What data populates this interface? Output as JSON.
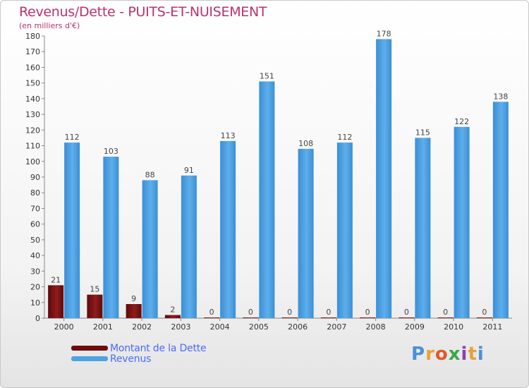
{
  "header": {
    "title": "Revenus/Dette - PUITS-ET-NUISEMENT",
    "subtitle": "(en milliers d'€)"
  },
  "chart_data": {
    "type": "bar",
    "title": "Revenus/Dette - PUITS-ET-NUISEMENT",
    "ylabel": "(en milliers d'€)",
    "xlabel": "",
    "ylim": [
      0,
      180
    ],
    "ytick_step": 10,
    "grid": false,
    "categories": [
      "2000",
      "2001",
      "2002",
      "2003",
      "2004",
      "2005",
      "2006",
      "2007",
      "2008",
      "2009",
      "2010",
      "2011"
    ],
    "series": [
      {
        "name": "Montant de la Dette",
        "color": "#7a1010",
        "values": [
          21,
          15,
          9,
          2,
          0,
          0,
          0,
          0,
          0,
          0,
          0,
          0
        ]
      },
      {
        "name": "Revenus",
        "color": "#4a9fe0",
        "values": [
          112,
          103,
          88,
          91,
          113,
          151,
          108,
          112,
          178,
          115,
          122,
          138
        ]
      }
    ],
    "legend_position": "bottom-left"
  },
  "legend": {
    "items": [
      {
        "label": "Montant de la Dette",
        "color": "#6e0c0c"
      },
      {
        "label": "Revenus",
        "color": "#4ea3e3"
      }
    ]
  },
  "logo": {
    "letters": [
      "P",
      "r",
      "o",
      "x",
      "i",
      "t",
      "i"
    ],
    "colors": [
      "#4a90d9",
      "#e8a13a",
      "#e05a2a",
      "#3aa54b",
      "#8a3fb3",
      "#e8a13a",
      "#4a90d9"
    ]
  }
}
